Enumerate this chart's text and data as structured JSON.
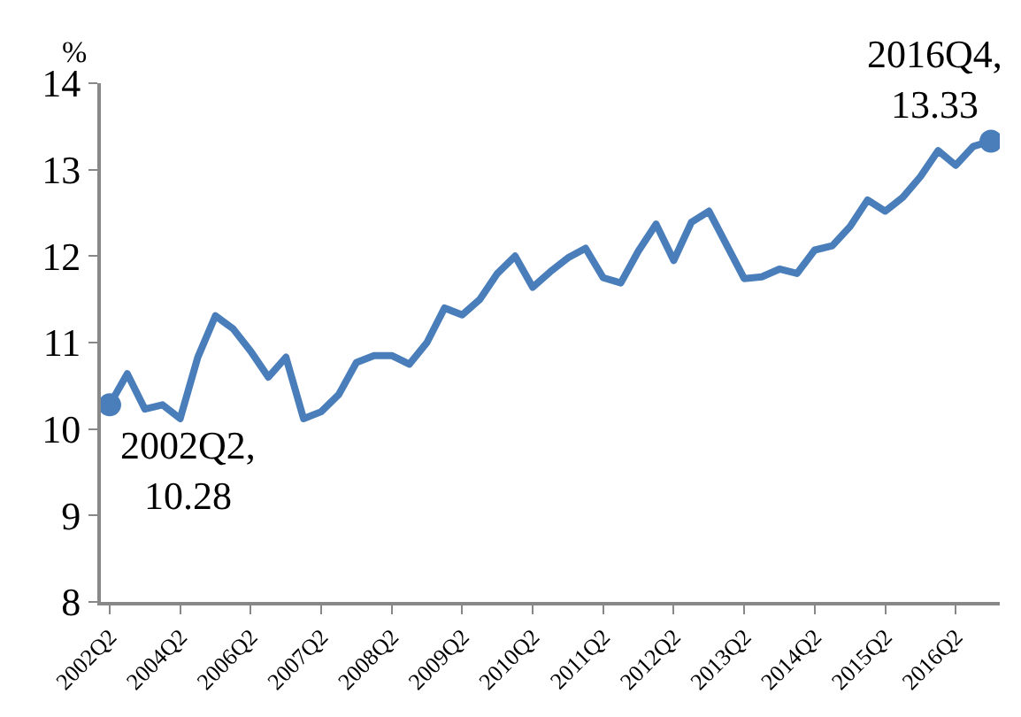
{
  "chart_data": {
    "type": "line",
    "ylabel": "%",
    "categories": [
      "2002Q2",
      null,
      null,
      null,
      "2004Q2",
      null,
      null,
      null,
      "2006Q2",
      null,
      null,
      null,
      "2007Q2",
      null,
      null,
      null,
      "2008Q2",
      null,
      null,
      null,
      "2009Q2",
      null,
      null,
      null,
      "2010Q2",
      null,
      null,
      null,
      "2011Q2",
      null,
      null,
      null,
      "2012Q2",
      null,
      null,
      null,
      "2013Q2",
      null,
      null,
      null,
      "2014Q2",
      null,
      null,
      null,
      "2015Q2",
      null,
      null,
      null,
      "2016Q2",
      null,
      null
    ],
    "series": [
      {
        "type": "line",
        "color": "#4a7ebb",
        "values": [
          10.28,
          10.64,
          10.23,
          10.28,
          10.12,
          10.83,
          11.31,
          11.16,
          10.9,
          10.6,
          10.83,
          10.12,
          10.2,
          10.4,
          10.77,
          10.85,
          10.85,
          10.75,
          11.0,
          11.4,
          11.32,
          11.5,
          11.8,
          12.0,
          11.64,
          11.82,
          11.98,
          12.09,
          11.75,
          11.69,
          12.06,
          12.37,
          11.95,
          12.39,
          12.52,
          12.13,
          11.74,
          11.76,
          11.85,
          11.8,
          12.07,
          12.12,
          12.34,
          12.65,
          12.52,
          12.68,
          12.92,
          13.22,
          13.05,
          13.27,
          13.33
        ]
      },
      {
        "type": "scatter",
        "marker": "circle",
        "color": "#4a7ebb",
        "values": [
          10.28,
          null,
          null,
          null,
          null,
          null,
          null,
          null,
          null,
          null,
          null,
          null,
          null,
          null,
          null,
          null,
          null,
          null,
          null,
          null,
          null,
          null,
          null,
          null,
          null,
          null,
          null,
          null,
          null,
          null,
          null,
          null,
          null,
          null,
          null,
          null,
          null,
          null,
          null,
          null,
          null,
          null,
          null,
          null,
          null,
          null,
          null,
          null,
          null,
          null,
          13.33
        ]
      }
    ],
    "annotations": [
      "2002Q2,\n10.28",
      "2016Q4,\n13.33"
    ],
    "ylim": [
      8,
      14
    ],
    "yticks": [
      8,
      9,
      10,
      11,
      12,
      13,
      14
    ],
    "grid": false,
    "marker": "none",
    "line_style": "solid"
  }
}
